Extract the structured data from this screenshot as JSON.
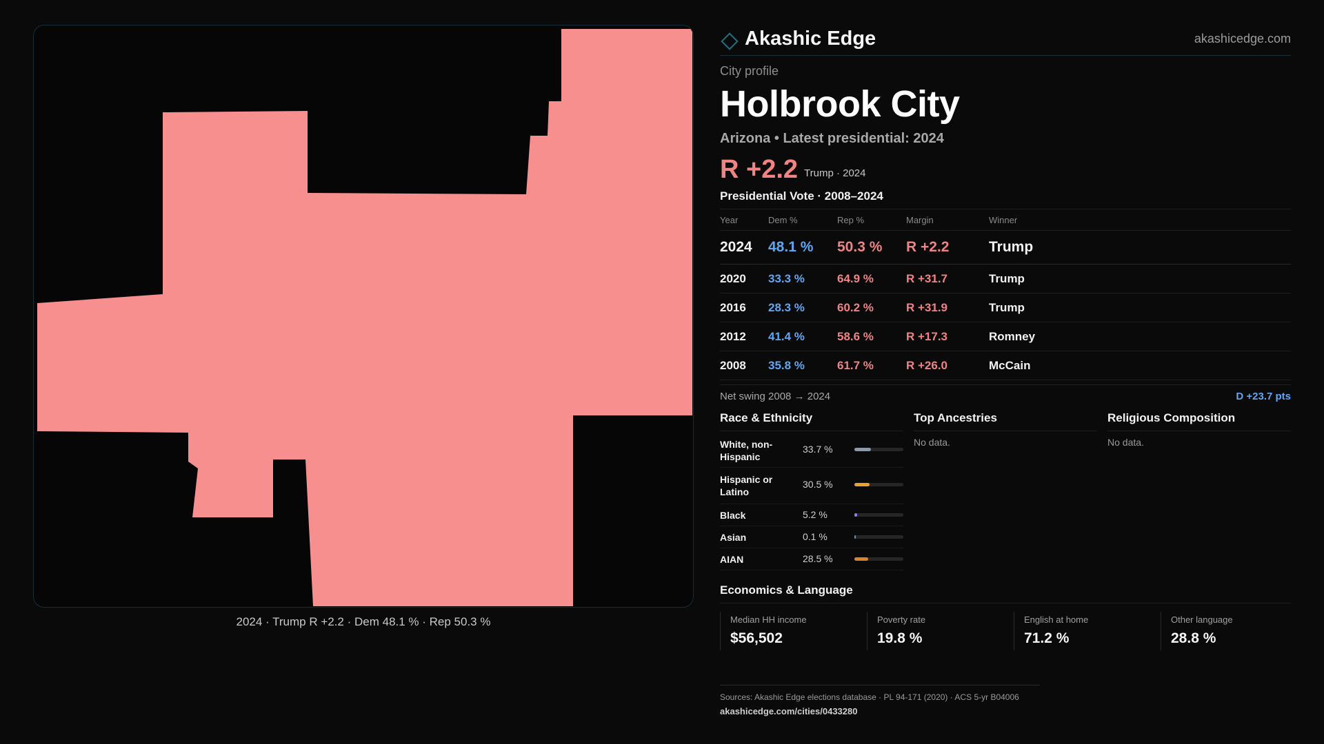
{
  "brand": {
    "name": "Akashic Edge",
    "url": "akashicedge.com",
    "accent": "#1f6f80"
  },
  "map": {
    "fill_color": "#f78f8e",
    "caption": "2024 · Trump R +2.2 · Dem 48.1 % · Rep 50.3 %"
  },
  "profile": {
    "kicker": "City profile",
    "title": "Holbrook City",
    "subtitle": "Arizona • Latest presidential: 2024",
    "margin": "R +2.2",
    "margin_meta": "Trump · 2024"
  },
  "votes": {
    "heading": "Presidential Vote · 2008–2024",
    "columns": [
      "Year",
      "Dem %",
      "Rep %",
      "Margin",
      "Winner"
    ],
    "rows": [
      {
        "year": "2024",
        "dem": "48.1 %",
        "rep": "50.3 %",
        "margin": "R +2.2",
        "winner": "Trump"
      },
      {
        "year": "2020",
        "dem": "33.3 %",
        "rep": "64.9 %",
        "margin": "R +31.7",
        "winner": "Trump"
      },
      {
        "year": "2016",
        "dem": "28.3 %",
        "rep": "60.2 %",
        "margin": "R +31.9",
        "winner": "Trump"
      },
      {
        "year": "2012",
        "dem": "41.4 %",
        "rep": "58.6 %",
        "margin": "R +17.3",
        "winner": "Romney"
      },
      {
        "year": "2008",
        "dem": "35.8 %",
        "rep": "61.7 %",
        "margin": "R +26.0",
        "winner": "McCain"
      }
    ],
    "swing_label": "Net swing 2008 → 2024",
    "swing_value": "D +23.7 pts",
    "dem_color": "#5ea7f5",
    "rep_color": "#f08483"
  },
  "race": {
    "heading": "Race & Ethnicity",
    "rows": [
      {
        "label": "White, non-Hispanic",
        "value": "33.7 %",
        "pct": 33.7,
        "color": "#8e9aa8"
      },
      {
        "label": "Hispanic or Latino",
        "value": "30.5 %",
        "pct": 30.5,
        "color": "#e8a22a"
      },
      {
        "label": "Black",
        "value": "5.2 %",
        "pct": 5.2,
        "color": "#8b7ef0"
      },
      {
        "label": "Asian",
        "value": "0.1 %",
        "pct": 0.1,
        "color": "#4aa0c8"
      },
      {
        "label": "AIAN",
        "value": "28.5 %",
        "pct": 28.5,
        "color": "#d6862a"
      }
    ]
  },
  "ancestry": {
    "heading": "Top Ancestries",
    "empty": "No data."
  },
  "religion": {
    "heading": "Religious Composition",
    "empty": "No data."
  },
  "economics": {
    "heading": "Economics & Language",
    "cells": [
      {
        "label": "Median HH income",
        "value": "$56,502"
      },
      {
        "label": "Poverty rate",
        "value": "19.8 %"
      },
      {
        "label": "English at home",
        "value": "71.2 %"
      },
      {
        "label": "Other language",
        "value": "28.8 %"
      }
    ]
  },
  "footer": {
    "sources": "Sources: Akashic Edge elections database · PL 94-171 (2020) · ACS 5-yr B04006",
    "url": "akashicedge.com/cities/0433280"
  }
}
